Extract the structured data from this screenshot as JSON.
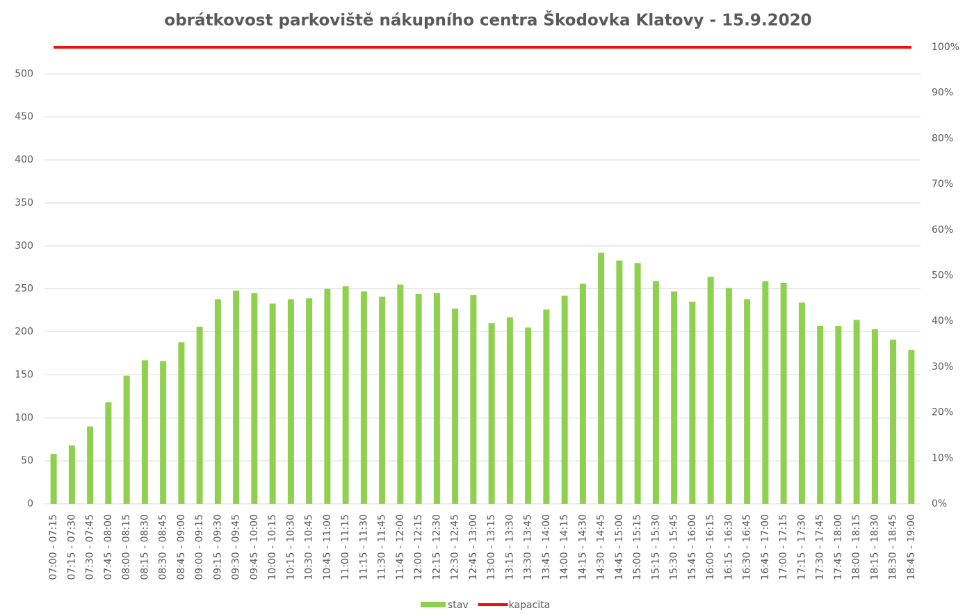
{
  "chart_data": {
    "type": "bar",
    "title": "obrátkovost parkoviště nákupního centra Škodovka Klatovy - 15.9.2020",
    "categories": [
      "07:00 - 07:15",
      "07:15 - 07:30",
      "07:30 - 07:45",
      "07:45 - 08:00",
      "08:00 - 08:15",
      "08:15 - 08:30",
      "08:30 - 08:45",
      "08:45 - 09:00",
      "09:00 - 09:15",
      "09:15 - 09:30",
      "09:30 - 09:45",
      "09:45 - 10:00",
      "10:00 - 10:15",
      "10:15 - 10:30",
      "10:30 - 10:45",
      "10:45 - 11:00",
      "11:00 - 11:15",
      "11:15 - 11:30",
      "11:30 - 11:45",
      "11:45 - 12:00",
      "12:00 - 12:15",
      "12:15 - 12:30",
      "12:30 - 12:45",
      "12:45 - 13:00",
      "13:00 - 13:15",
      "13:15 - 13:30",
      "13:30 - 13:45",
      "13:45 - 14:00",
      "14:00 - 14:15",
      "14:15 - 14:30",
      "14:30 - 14:45",
      "14:45 - 15:00",
      "15:00 - 15:15",
      "15:15 - 15:30",
      "15:30 - 15:45",
      "15:45 - 16:00",
      "16:00 - 16:15",
      "16:15 - 16:30",
      "16:30 - 16:45",
      "16:45 - 17:00",
      "17:00 - 17:15",
      "17:15 - 17:30",
      "17:30 - 17:45",
      "17:45 - 18:00",
      "18:00 - 18:15",
      "18:15 - 18:30",
      "18:30 - 18:45",
      "18:45 - 19:00"
    ],
    "series": [
      {
        "name": "stav",
        "color": "#8fd14f",
        "type": "bar",
        "values": [
          58,
          68,
          90,
          118,
          149,
          167,
          166,
          188,
          206,
          238,
          248,
          245,
          233,
          238,
          239,
          250,
          253,
          247,
          241,
          255,
          244,
          245,
          227,
          243,
          210,
          217,
          205,
          226,
          242,
          256,
          292,
          283,
          280,
          259,
          247,
          235,
          264,
          251,
          238,
          259,
          257,
          234,
          207,
          207,
          214,
          203,
          191,
          179
        ]
      },
      {
        "name": "kapacita",
        "color": "#ee1111",
        "type": "line",
        "axis": "y2",
        "values": [
          100,
          100,
          100,
          100,
          100,
          100,
          100,
          100,
          100,
          100,
          100,
          100,
          100,
          100,
          100,
          100,
          100,
          100,
          100,
          100,
          100,
          100,
          100,
          100,
          100,
          100,
          100,
          100,
          100,
          100,
          100,
          100,
          100,
          100,
          100,
          100,
          100,
          100,
          100,
          100,
          100,
          100,
          100,
          100,
          100,
          100,
          100,
          100
        ]
      }
    ],
    "ylim": [
      0,
      531
    ],
    "yticks": [
      0,
      50,
      100,
      150,
      200,
      250,
      300,
      350,
      400,
      450,
      500
    ],
    "y2lim": [
      0,
      100
    ],
    "y2ticks": [
      {
        "value": 0,
        "label": "0%"
      },
      {
        "value": 10,
        "label": "10%"
      },
      {
        "value": 20,
        "label": "20%"
      },
      {
        "value": 30,
        "label": "30%"
      },
      {
        "value": 40,
        "label": "40%"
      },
      {
        "value": 50,
        "label": "50%"
      },
      {
        "value": 60,
        "label": "60%"
      },
      {
        "value": 70,
        "label": "70%"
      },
      {
        "value": 80,
        "label": "80%"
      },
      {
        "value": 90,
        "label": "90%"
      },
      {
        "value": 100,
        "label": "100%"
      }
    ],
    "grid": true,
    "legend": "bottom"
  }
}
